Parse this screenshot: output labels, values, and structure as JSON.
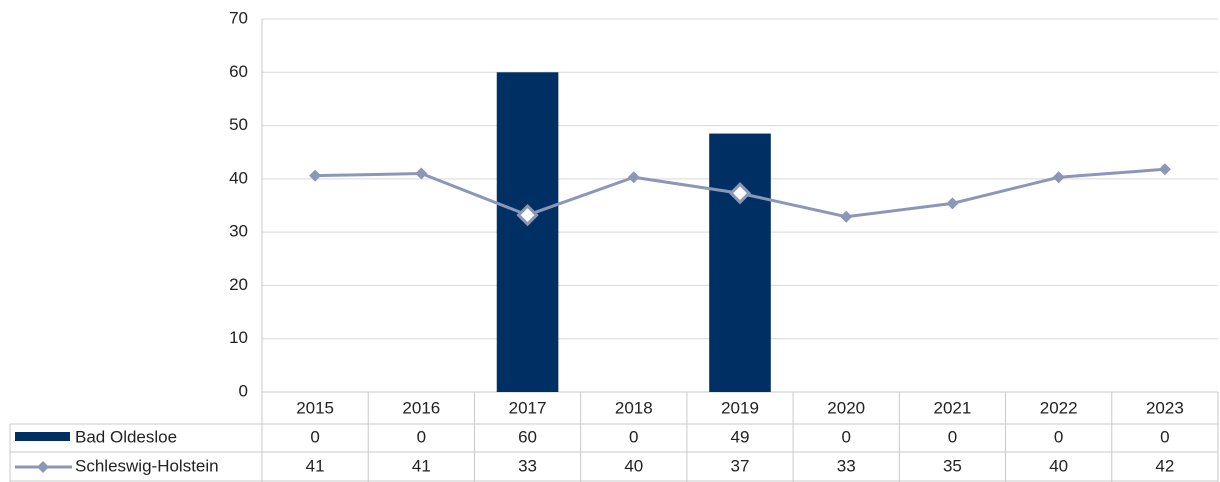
{
  "chart_data": {
    "type": "bar-line",
    "categories": [
      "2015",
      "2016",
      "2017",
      "2018",
      "2019",
      "2020",
      "2021",
      "2022",
      "2023"
    ],
    "series": [
      {
        "name": "Bad Oldesloe",
        "type": "bar",
        "color": "#003063",
        "values": [
          0,
          0,
          60,
          0,
          48.5,
          0,
          0,
          0,
          0
        ],
        "value_labels": [
          "0",
          "0",
          "60",
          "0",
          "49",
          "0",
          "0",
          "0",
          "0"
        ]
      },
      {
        "name": "Schleswig-Holstein",
        "type": "line",
        "color": "#8c97b8",
        "values": [
          40.6,
          41,
          33.2,
          40.3,
          37.3,
          32.9,
          35.4,
          40.3,
          41.8
        ],
        "value_labels": [
          "41",
          "41",
          "33",
          "40",
          "37",
          "33",
          "35",
          "40",
          "42"
        ]
      }
    ],
    "ylim": [
      0,
      70
    ],
    "yticks": [
      0,
      10,
      20,
      30,
      40,
      50,
      60,
      70
    ],
    "grid": true,
    "data_table": true
  }
}
